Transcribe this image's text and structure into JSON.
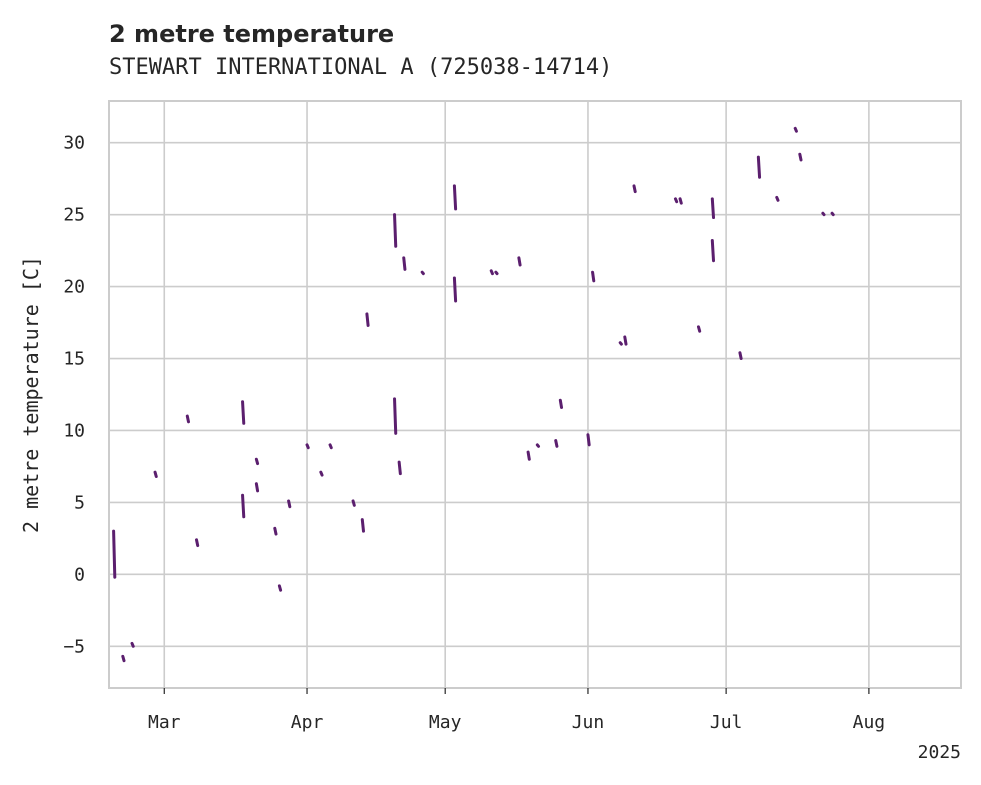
{
  "chart_data": {
    "type": "line",
    "title": "2 metre temperature",
    "subtitle": "STEWART INTERNATIONAL A (725038-14714)",
    "ylabel": "2 metre temperature [C]",
    "xlabel": "",
    "year_label": "2025",
    "x_domain": [
      "2025-02-17",
      "2025-08-21"
    ],
    "ylim": [
      -7.9,
      32.9
    ],
    "yticks": [
      -5,
      0,
      5,
      10,
      15,
      20,
      25,
      30
    ],
    "ytick_labels": [
      "−5",
      "0",
      "5",
      "10",
      "15",
      "20",
      "25",
      "30"
    ],
    "xticks": [
      {
        "date": "2025-03-01",
        "label": "Mar"
      },
      {
        "date": "2025-04-01",
        "label": "Apr"
      },
      {
        "date": "2025-05-01",
        "label": "May"
      },
      {
        "date": "2025-06-01",
        "label": "Jun"
      },
      {
        "date": "2025-07-01",
        "label": "Jul"
      },
      {
        "date": "2025-08-01",
        "label": "Aug"
      }
    ],
    "grid": true,
    "line_color": "#5b1f6e",
    "series": [
      {
        "name": "2 metre temperature",
        "segments": [
          {
            "x": "2025-02-18",
            "y": [
              3.0,
              -0.2
            ]
          },
          {
            "x": "2025-02-20",
            "y": [
              -5.7,
              -6.0
            ]
          },
          {
            "x": "2025-02-22",
            "y": [
              -4.8,
              -5.0
            ]
          },
          {
            "x": "2025-02-27",
            "y": [
              7.1,
              6.8
            ]
          },
          {
            "x": "2025-03-06",
            "y": [
              11.0,
              10.6
            ]
          },
          {
            "x": "2025-03-08",
            "y": [
              2.4,
              2.0
            ]
          },
          {
            "x": "2025-03-18",
            "y": [
              12.0,
              10.5
            ]
          },
          {
            "x": "2025-03-18",
            "y": [
              5.5,
              4.0
            ]
          },
          {
            "x": "2025-03-21",
            "y": [
              6.3,
              5.8
            ]
          },
          {
            "x": "2025-03-21",
            "y": [
              8.0,
              7.7
            ]
          },
          {
            "x": "2025-03-25",
            "y": [
              3.2,
              2.8
            ]
          },
          {
            "x": "2025-03-26",
            "y": [
              -0.8,
              -1.1
            ]
          },
          {
            "x": "2025-03-28",
            "y": [
              5.1,
              4.7
            ]
          },
          {
            "x": "2025-04-01",
            "y": [
              9.0,
              8.8
            ]
          },
          {
            "x": "2025-04-04",
            "y": [
              7.1,
              6.9
            ]
          },
          {
            "x": "2025-04-06",
            "y": [
              9.0,
              8.8
            ]
          },
          {
            "x": "2025-04-11",
            "y": [
              5.1,
              4.8
            ]
          },
          {
            "x": "2025-04-13",
            "y": [
              3.8,
              3.0
            ]
          },
          {
            "x": "2025-04-14",
            "y": [
              18.1,
              17.3
            ]
          },
          {
            "x": "2025-04-20",
            "y": [
              25.0,
              22.8
            ]
          },
          {
            "x": "2025-04-20",
            "y": [
              12.2,
              9.8
            ]
          },
          {
            "x": "2025-04-21",
            "y": [
              7.8,
              7.0
            ]
          },
          {
            "x": "2025-04-22",
            "y": [
              22.0,
              21.2
            ]
          },
          {
            "x": "2025-04-26",
            "y": [
              21.0,
              20.9
            ]
          },
          {
            "x": "2025-05-03",
            "y": [
              27.0,
              25.4
            ]
          },
          {
            "x": "2025-05-03",
            "y": [
              20.6,
              19.0
            ]
          },
          {
            "x": "2025-05-11",
            "y": [
              21.1,
              20.9
            ]
          },
          {
            "x": "2025-05-12",
            "y": [
              21.0,
              20.9
            ]
          },
          {
            "x": "2025-05-17",
            "y": [
              22.0,
              21.5
            ]
          },
          {
            "x": "2025-05-19",
            "y": [
              8.5,
              8.0
            ]
          },
          {
            "x": "2025-05-21",
            "y": [
              9.0,
              8.9
            ]
          },
          {
            "x": "2025-05-25",
            "y": [
              9.3,
              8.9
            ]
          },
          {
            "x": "2025-05-26",
            "y": [
              12.1,
              11.6
            ]
          },
          {
            "x": "2025-06-01",
            "y": [
              9.7,
              9.0
            ]
          },
          {
            "x": "2025-06-02",
            "y": [
              21.0,
              20.4
            ]
          },
          {
            "x": "2025-06-08",
            "y": [
              16.1,
              16.0
            ]
          },
          {
            "x": "2025-06-09",
            "y": [
              16.5,
              16.0
            ]
          },
          {
            "x": "2025-06-11",
            "y": [
              27.0,
              26.6
            ]
          },
          {
            "x": "2025-06-20",
            "y": [
              26.1,
              25.9
            ]
          },
          {
            "x": "2025-06-21",
            "y": [
              26.1,
              25.8
            ]
          },
          {
            "x": "2025-06-25",
            "y": [
              17.2,
              16.9
            ]
          },
          {
            "x": "2025-06-28",
            "y": [
              26.1,
              24.8
            ]
          },
          {
            "x": "2025-06-28",
            "y": [
              23.2,
              21.8
            ]
          },
          {
            "x": "2025-07-04",
            "y": [
              15.4,
              15.0
            ]
          },
          {
            "x": "2025-07-08",
            "y": [
              29.0,
              27.6
            ]
          },
          {
            "x": "2025-07-12",
            "y": [
              26.2,
              26.0
            ]
          },
          {
            "x": "2025-07-16",
            "y": [
              31.0,
              30.8
            ]
          },
          {
            "x": "2025-07-17",
            "y": [
              29.2,
              28.8
            ]
          },
          {
            "x": "2025-07-22",
            "y": [
              25.1,
              25.0
            ]
          },
          {
            "x": "2025-07-24",
            "y": [
              25.1,
              25.0
            ]
          }
        ]
      }
    ]
  }
}
